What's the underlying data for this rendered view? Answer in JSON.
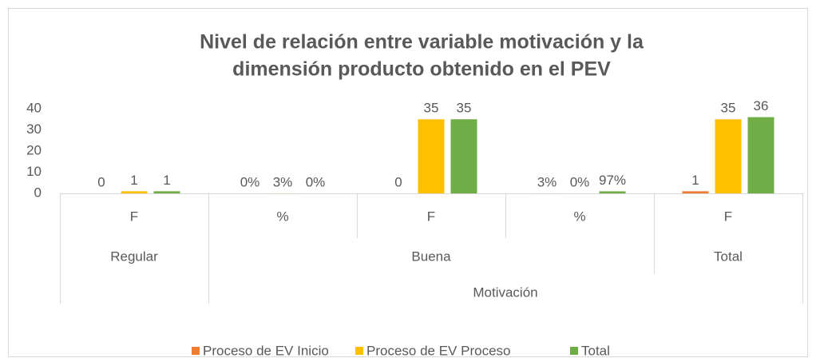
{
  "chart_data": {
    "type": "bar",
    "title": "Nivel de relación entre variable motivación y la",
    "title_line2": "dimensión producto obtenido en el PEV",
    "categories": [
      "F",
      "%",
      "F",
      "%",
      "F"
    ],
    "category_groups": [
      [
        "Regular",
        "Buena",
        "Buena",
        "Buena",
        "Total"
      ],
      [
        null,
        "Motivación",
        "Motivación",
        "Motivación",
        "Motivación"
      ]
    ],
    "series": [
      {
        "name": "Proceso de EV Inicio",
        "color": "#ed7d31",
        "values": [
          0,
          0,
          0,
          0.03,
          1
        ],
        "value_labels": [
          "0",
          "0%",
          "0",
          "3%",
          "1"
        ]
      },
      {
        "name": "Proceso de EV Proceso",
        "color": "#ffc000",
        "values": [
          1,
          0.03,
          35,
          0,
          35
        ],
        "value_labels": [
          "1",
          "3%",
          "35",
          "0%",
          "35"
        ]
      },
      {
        "name": "Total",
        "color": "#70ad47",
        "values": [
          1,
          0,
          35,
          0.97,
          36
        ],
        "value_labels": [
          "1",
          "0%",
          "35",
          "97%",
          "36"
        ]
      }
    ],
    "ylim": [
      0,
      40
    ],
    "yticks": [
      0,
      10,
      20,
      30,
      40
    ],
    "grid": false,
    "legend": "bottom"
  }
}
